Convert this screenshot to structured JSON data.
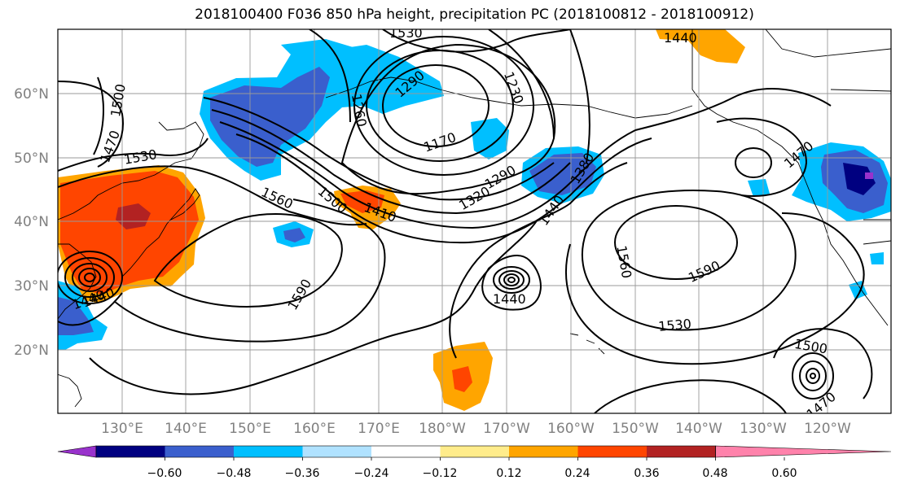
{
  "title": "2018100400 F036 850 hPa height, precipitation PC (2018100812 - 2018100912)",
  "lon_labels": [
    "130°E",
    "140°E",
    "150°E",
    "160°E",
    "170°E",
    "180°W",
    "170°W",
    "160°W",
    "150°W",
    "140°W",
    "130°W",
    "120°W"
  ],
  "lat_labels": [
    "60°N",
    "50°N",
    "40°N",
    "30°N",
    "20°N"
  ],
  "contour_labels": [
    "1530",
    "1500",
    "1470",
    "1530",
    "1560",
    "1500",
    "1410",
    "1290",
    "1260",
    "1170",
    "1230",
    "1290",
    "1320",
    "1380",
    "1440",
    "1440",
    "1590",
    "1440",
    "1560",
    "1590",
    "1530",
    "1500",
    "1470",
    "1470",
    "1440",
    "1440"
  ],
  "colorbar": {
    "tick_labels": [
      "−0.60",
      "−0.48",
      "−0.36",
      "−0.24",
      "−0.12",
      "0.12",
      "0.24",
      "0.36",
      "0.48",
      "0.60"
    ],
    "colors": [
      "#9932cc",
      "#000080",
      "#3a5fcd",
      "#00bfff",
      "#b0e2ff",
      "#ffffff",
      "#ffec8b",
      "#ffa500",
      "#ff4500",
      "#b22222",
      "#ff82ab"
    ]
  }
}
